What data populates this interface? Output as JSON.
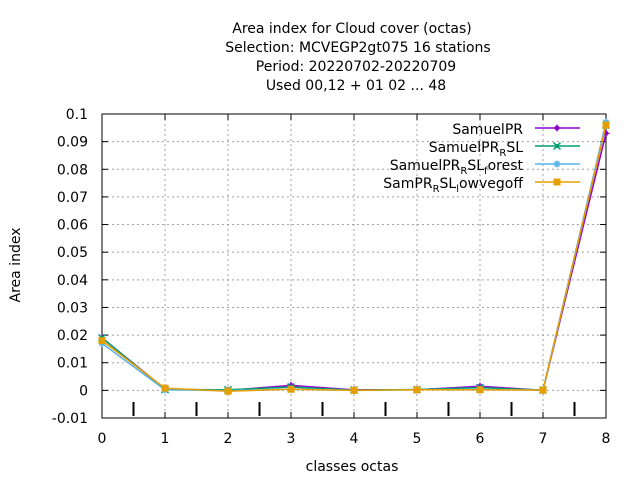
{
  "chart_data": {
    "type": "line",
    "title_lines": [
      "Area index  for Cloud cover (octas)",
      "Selection: MCVEGP2gt075      16 stations",
      "Period: 20220702-20220709",
      "Used  00,12  + 01 02 ... 48"
    ],
    "xlabel": "classes octas",
    "ylabel": "Area index",
    "xlim": [
      0,
      8
    ],
    "ylim": [
      -0.01,
      0.1
    ],
    "xticks": [
      0,
      1,
      2,
      3,
      4,
      5,
      6,
      7,
      8
    ],
    "xtick_labels": [
      "0",
      "1",
      "2",
      "3",
      "4",
      "5",
      "6",
      "7",
      "8"
    ],
    "yticks": [
      -0.01,
      0,
      0.01,
      0.02,
      0.03,
      0.04,
      0.05,
      0.06,
      0.07,
      0.08,
      0.09,
      0.1
    ],
    "ytick_labels": [
      "-0.01",
      "0",
      "0.01",
      "0.02",
      "0.03",
      "0.04",
      "0.05",
      "0.06",
      "0.07",
      "0.08",
      "0.09",
      "0.1"
    ],
    "minor_x_marks": [
      0.5,
      1.5,
      2.5,
      3.5,
      4.5,
      5.5,
      6.5,
      7.5
    ],
    "grid": true,
    "legend_position": "top-right",
    "x": [
      0,
      1,
      2,
      3,
      4,
      5,
      6,
      7,
      8
    ],
    "series": [
      {
        "name": "SamuelPR",
        "color": "#9400d3",
        "marker": "plus",
        "values": [
          0.019,
          0.0005,
          0.0,
          0.0018,
          0.0002,
          0.0002,
          0.0015,
          0.0,
          0.093
        ]
      },
      {
        "name": "SamuelPR_RSL",
        "color": "#009e73",
        "marker": "cross",
        "values": [
          0.019,
          0.0003,
          0.0002,
          0.0012,
          0.0001,
          0.0003,
          0.001,
          0.0001,
          0.096
        ]
      },
      {
        "name": "SamuelPR_RSL_forest",
        "color": "#56b4e9",
        "marker": "star",
        "values": [
          0.017,
          0.0002,
          -0.0001,
          0.0005,
          0.0,
          0.0002,
          0.0003,
          0.0001,
          0.097
        ]
      },
      {
        "name": "SamPR_RSL_lowvegoff",
        "color": "#e69f00",
        "marker": "square",
        "values": [
          0.018,
          0.0008,
          -0.0003,
          0.0004,
          0.0,
          0.0002,
          0.0002,
          0.0001,
          0.096
        ]
      }
    ]
  },
  "legend_labels": [
    {
      "main": "SamuelPR",
      "sub1": "",
      "mid": "",
      "sub2": "",
      "tail": ""
    },
    {
      "main": "SamuelPR",
      "sub1": "R",
      "mid": "SL",
      "sub2": "",
      "tail": ""
    },
    {
      "main": "SamuelPR",
      "sub1": "R",
      "mid": "SL",
      "sub2": "f",
      "tail": "orest"
    },
    {
      "main": "SamPR",
      "sub1": "R",
      "mid": "SL",
      "sub2": "l",
      "tail": "owvegoff"
    }
  ]
}
